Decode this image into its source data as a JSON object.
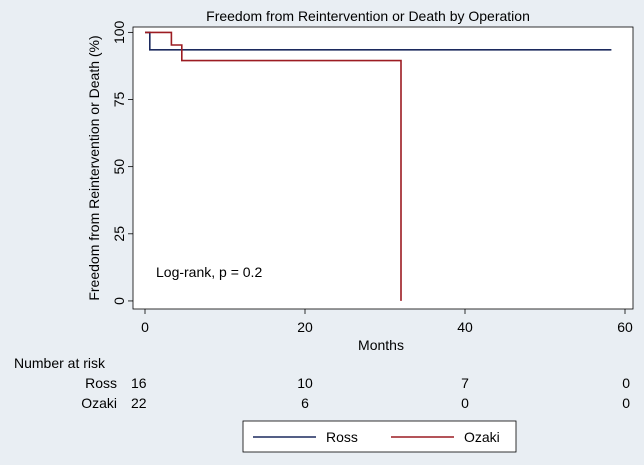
{
  "chart_data": {
    "type": "line",
    "title": "Freedom from Reintervention or Death by Operation",
    "xlabel": "Months",
    "ylabel": "Freedom from Reintervention or Death (%)",
    "xlim": [
      -1.5,
      61
    ],
    "ylim": [
      -3,
      102
    ],
    "xticks": [
      0,
      20,
      40,
      60
    ],
    "yticks": [
      0,
      25,
      50,
      75,
      100
    ],
    "annotation": "Log-rank, p = 0.2",
    "series": [
      {
        "name": "Ross",
        "color": "#1c2a5e",
        "points": [
          [
            0,
            100
          ],
          [
            0.6,
            100
          ],
          [
            0.6,
            93.5
          ],
          [
            58.3,
            93.5
          ]
        ]
      },
      {
        "name": "Ozaki",
        "color": "#9c1c22",
        "points": [
          [
            0,
            100
          ],
          [
            3.3,
            100
          ],
          [
            3.3,
            95.3
          ],
          [
            4.6,
            95.3
          ],
          [
            4.6,
            89.5
          ],
          [
            32,
            89.5
          ],
          [
            32,
            0
          ]
        ]
      }
    ],
    "risk_table": {
      "header": "Number at risk",
      "times": [
        0,
        20,
        40,
        60
      ],
      "rows": [
        {
          "name": "Ross",
          "values": [
            "16",
            "10",
            "7",
            "0"
          ]
        },
        {
          "name": "Ozaki",
          "values": [
            "22",
            "6",
            "0",
            "0"
          ]
        }
      ]
    }
  }
}
